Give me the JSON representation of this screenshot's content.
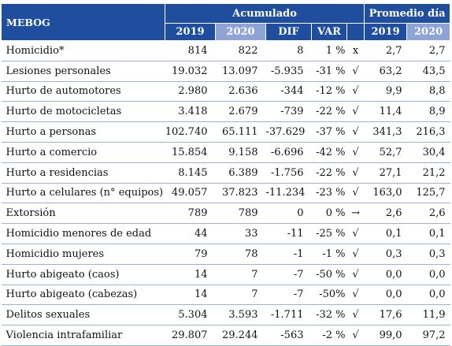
{
  "header": {
    "group_label": "MEBOG",
    "accumulated_label": "Acumulado",
    "average_label": "Promedio día",
    "year1": "2019",
    "year2": "2020",
    "dif_label": "DIF",
    "var_label": "VAR",
    "avg_year1": "2019",
    "avg_year2": "2020"
  },
  "rows": [
    {
      "name": "Homicidio*",
      "v2019": "814",
      "v2020": "822",
      "dif": "8",
      "var": "1 %",
      "ind": "x",
      "p2019": "2,7",
      "p2020": "2,7"
    },
    {
      "name": "Lesiones personales",
      "v2019": "19.032",
      "v2020": "13.097",
      "dif": "-5.935",
      "var": "-31 %",
      "ind": "√",
      "p2019": "63,2",
      "p2020": "43,5"
    },
    {
      "name": "Hurto de automotores",
      "v2019": "2.980",
      "v2020": "2.636",
      "dif": "-344",
      "var": "-12 %",
      "ind": "√",
      "p2019": "9,9",
      "p2020": "8,8"
    },
    {
      "name": "Hurto de motocicletas",
      "v2019": "3.418",
      "v2020": "2.679",
      "dif": "-739",
      "var": "-22 %",
      "ind": "√",
      "p2019": "11,4",
      "p2020": "8,9"
    },
    {
      "name": "Hurto a personas",
      "v2019": "102.740",
      "v2020": "65.111",
      "dif": "-37.629",
      "var": "-37 %",
      "ind": "√",
      "p2019": "341,3",
      "p2020": "216,3"
    },
    {
      "name": "Hurto a comercio",
      "v2019": "15.854",
      "v2020": "9.158",
      "dif": "-6.696",
      "var": "-42 %",
      "ind": "√",
      "p2019": "52,7",
      "p2020": "30,4"
    },
    {
      "name": "Hurto a residencias",
      "v2019": "8.145",
      "v2020": "6.389",
      "dif": "-1.756",
      "var": "-22 %",
      "ind": "√",
      "p2019": "27,1",
      "p2020": "21,2"
    },
    {
      "name": "Hurto a celulares (n° equipos)",
      "v2019": "49.057",
      "v2020": "37.823",
      "dif": "-11.234",
      "var": "-23 %",
      "ind": "√",
      "p2019": "163,0",
      "p2020": "125,7"
    },
    {
      "name": "Extorsión",
      "v2019": "789",
      "v2020": "789",
      "dif": "0",
      "var": "0 %",
      "ind": "→",
      "p2019": "2,6",
      "p2020": "2,6"
    },
    {
      "name": "Homicidio menores de edad",
      "v2019": "44",
      "v2020": "33",
      "dif": "-11",
      "var": "-25 %",
      "ind": "√",
      "p2019": "0,1",
      "p2020": "0,1"
    },
    {
      "name": "Homicidio mujeres",
      "v2019": "79",
      "v2020": "78",
      "dif": "-1",
      "var": "-1 %",
      "ind": "√",
      "p2019": "0,3",
      "p2020": "0,3"
    },
    {
      "name": "Hurto abigeato (caos)",
      "v2019": "14",
      "v2020": "7",
      "dif": "-7",
      "var": "-50 %",
      "ind": "√",
      "p2019": "0,0",
      "p2020": "0,0"
    },
    {
      "name": "Hurto abigeato (cabezas)",
      "v2019": "14",
      "v2020": "7",
      "dif": "-7",
      "var": "-50%",
      "ind": "√",
      "p2019": "0,0",
      "p2020": "0,0"
    },
    {
      "name": "Delitos sexuales",
      "v2019": "5.304",
      "v2020": "3.593",
      "dif": "-1.711",
      "var": "-32 %",
      "ind": "√",
      "p2019": "17,6",
      "p2020": "11,9"
    },
    {
      "name": "Violencia intrafamiliar",
      "v2019": "29.807",
      "v2020": "29.244",
      "dif": "-563",
      "var": "-2 %",
      "ind": "√",
      "p2019": "99,0",
      "p2020": "97,2"
    }
  ]
}
